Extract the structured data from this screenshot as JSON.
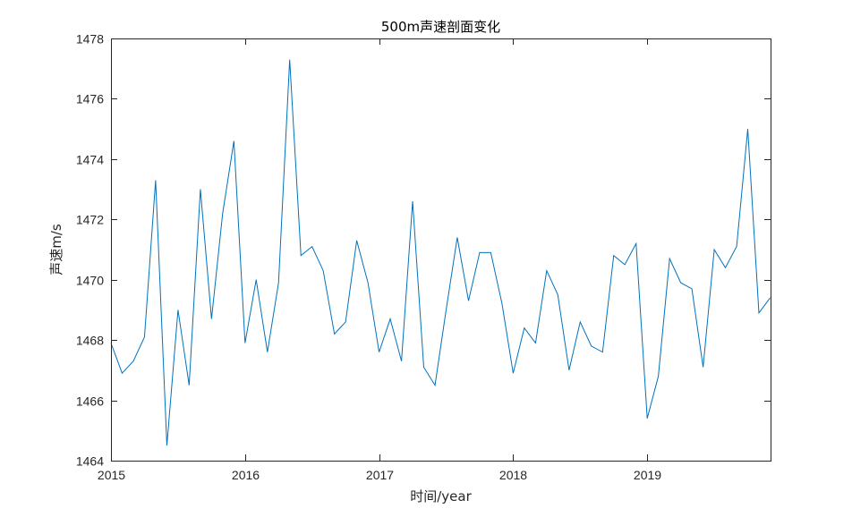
{
  "chart_data": {
    "type": "line",
    "title": "500m声速剖面变化",
    "xlabel": "时间/year",
    "ylabel": "声速m/s",
    "xlim": [
      2015.0,
      2019.92
    ],
    "ylim": [
      1464,
      1478
    ],
    "x_ticks": [
      2015,
      2016,
      2017,
      2018,
      2019
    ],
    "x_tick_labels": [
      "2015",
      "2016",
      "2017",
      "2018",
      "2019"
    ],
    "y_ticks": [
      1464,
      1466,
      1468,
      1470,
      1472,
      1474,
      1476,
      1478
    ],
    "y_tick_labels": [
      "1464",
      "1466",
      "1468",
      "1470",
      "1472",
      "1474",
      "1476",
      "1478"
    ],
    "grid": false,
    "legend": "none",
    "color": "#0072BD",
    "series": [
      {
        "x": [
          2015.0,
          2015.083,
          2015.167,
          2015.25,
          2015.333,
          2015.417,
          2015.5,
          2015.583,
          2015.667,
          2015.75,
          2015.833,
          2015.917,
          2016.0,
          2016.083,
          2016.167,
          2016.25,
          2016.333,
          2016.417,
          2016.5,
          2016.583,
          2016.667,
          2016.75,
          2016.833,
          2016.917,
          2017.0,
          2017.083,
          2017.167,
          2017.25,
          2017.333,
          2017.417,
          2017.5,
          2017.583,
          2017.667,
          2017.75,
          2017.833,
          2017.917,
          2018.0,
          2018.083,
          2018.167,
          2018.25,
          2018.333,
          2018.417,
          2018.5,
          2018.583,
          2018.667,
          2018.75,
          2018.833,
          2018.917,
          2019.0,
          2019.083,
          2019.167,
          2019.25,
          2019.333,
          2019.417,
          2019.5,
          2019.583,
          2019.667,
          2019.75,
          2019.833,
          2019.917
        ],
        "values": [
          1467.9,
          1466.9,
          1467.3,
          1468.1,
          1473.3,
          1464.5,
          1469.0,
          1466.5,
          1473.0,
          1468.7,
          1472.2,
          1474.6,
          1467.9,
          1470.0,
          1467.6,
          1469.9,
          1477.3,
          1470.8,
          1471.1,
          1470.3,
          1468.2,
          1468.6,
          1471.3,
          1469.9,
          1467.6,
          1468.7,
          1467.3,
          1472.6,
          1467.1,
          1466.5,
          1469.0,
          1471.4,
          1469.3,
          1470.9,
          1470.9,
          1469.2,
          1466.9,
          1468.4,
          1467.9,
          1470.3,
          1469.5,
          1467.0,
          1468.6,
          1467.8,
          1467.6,
          1470.8,
          1470.5,
          1471.2,
          1465.4,
          1466.8,
          1470.7,
          1469.9,
          1469.7,
          1467.1,
          1471.0,
          1470.4,
          1471.1,
          1475.0,
          1468.9,
          1469.4
        ]
      }
    ]
  }
}
